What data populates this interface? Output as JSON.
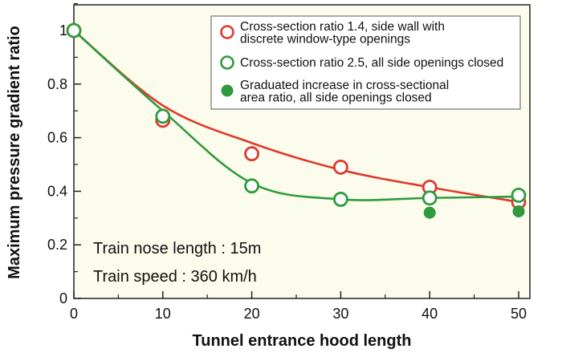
{
  "chart_data": {
    "type": "scatter",
    "title": "",
    "xlabel": "Tunnel entrance hood length",
    "ylabel": "Maximum pressure gradient ratio",
    "xlim": [
      0,
      50
    ],
    "ylim": [
      0,
      1.1
    ],
    "x_ticks": [
      "0",
      "10",
      "20",
      "30",
      "40",
      "50"
    ],
    "y_ticks": [
      "0",
      "0.2",
      "0.4",
      "0.6",
      "0.8",
      "1"
    ],
    "grid": false,
    "legend_position": "top-right",
    "series": [
      {
        "name_lines": [
          "Cross-section ratio 1.4, side wall with",
          "discrete window-type openings"
        ],
        "color": "#e0392b",
        "marker": "open-circle",
        "points": [
          [
            0,
            1.0
          ],
          [
            10,
            0.665
          ],
          [
            20,
            0.54
          ],
          [
            30,
            0.49
          ],
          [
            40,
            0.415
          ],
          [
            50,
            0.36
          ]
        ],
        "fit_curve": [
          [
            0,
            1.0
          ],
          [
            10,
            0.72
          ],
          [
            20,
            0.58
          ],
          [
            30,
            0.48
          ],
          [
            40,
            0.415
          ],
          [
            50,
            0.36
          ]
        ]
      },
      {
        "name_lines": [
          "Cross-section ratio 2.5, all side openings closed"
        ],
        "color": "#2f9a3e",
        "marker": "open-circle",
        "points": [
          [
            0,
            1.0
          ],
          [
            10,
            0.68
          ],
          [
            20,
            0.42
          ],
          [
            30,
            0.37
          ],
          [
            40,
            0.375
          ],
          [
            50,
            0.385
          ]
        ],
        "fit_curve": [
          [
            0,
            1.0
          ],
          [
            10,
            0.7
          ],
          [
            20,
            0.43
          ],
          [
            30,
            0.37
          ],
          [
            40,
            0.375
          ],
          [
            50,
            0.38
          ]
        ]
      },
      {
        "name_lines": [
          "Graduated increase in cross-sectional",
          "area ratio, all side openings closed"
        ],
        "color": "#2f9a3e",
        "marker": "filled-circle",
        "points": [
          [
            40,
            0.32
          ],
          [
            50,
            0.325
          ]
        ]
      }
    ],
    "annotations": [
      "Train nose length : 15m",
      "Train speed : 360 km/h"
    ]
  }
}
